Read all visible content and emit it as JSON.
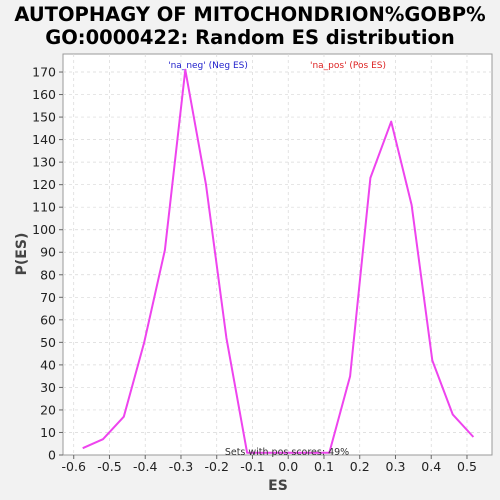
{
  "chart_data": {
    "type": "line",
    "title_line1": "AUTOPHAGY OF MITOCHONDRION%GOBP%",
    "title_line2": "GO:0000422: Random ES distribution",
    "xlabel": "ES",
    "ylabel": "P(ES)",
    "xlim": [
      -0.63,
      0.57
    ],
    "ylim": [
      0,
      178
    ],
    "x_ticks": [
      -0.6,
      -0.5,
      -0.4,
      -0.3,
      -0.2,
      -0.1,
      0.0,
      0.1,
      0.2,
      0.3,
      0.4,
      0.5
    ],
    "x_tick_labels": [
      "-0.6",
      "-0.5",
      "-0.4",
      "-0.3",
      "-0.2",
      "-0.1",
      "0.0",
      "0.1",
      "0.2",
      "0.3",
      "0.4",
      "0.5"
    ],
    "y_ticks": [
      0,
      10,
      20,
      30,
      40,
      50,
      60,
      70,
      80,
      90,
      100,
      110,
      120,
      130,
      140,
      150,
      160,
      170
    ],
    "y_tick_labels": [
      "0",
      "10",
      "20",
      "30",
      "40",
      "50",
      "60",
      "70",
      "80",
      "90",
      "100",
      "110",
      "120",
      "130",
      "140",
      "150",
      "160",
      "170"
    ],
    "grid": true,
    "series": [
      {
        "color": "#ee44ee",
        "x": [
          -0.575,
          -0.518,
          -0.46,
          -0.403,
          -0.345,
          -0.288,
          -0.23,
          -0.173,
          -0.115,
          0.115,
          0.173,
          0.23,
          0.288,
          0.345,
          0.403,
          0.46,
          0.518
        ],
        "y": [
          3,
          7,
          17,
          50,
          91,
          171,
          120,
          52,
          1,
          1,
          35,
          123,
          148,
          111,
          42,
          18,
          8
        ]
      }
    ],
    "legend": {
      "neg_label": "'na_neg' (Neg ES)",
      "neg_color": "#2222cc",
      "pos_label": "'na_pos' (Pos ES)",
      "pos_color": "#dd2222",
      "placement": "top"
    },
    "annotation": "Sets with pos scores: 49%"
  }
}
